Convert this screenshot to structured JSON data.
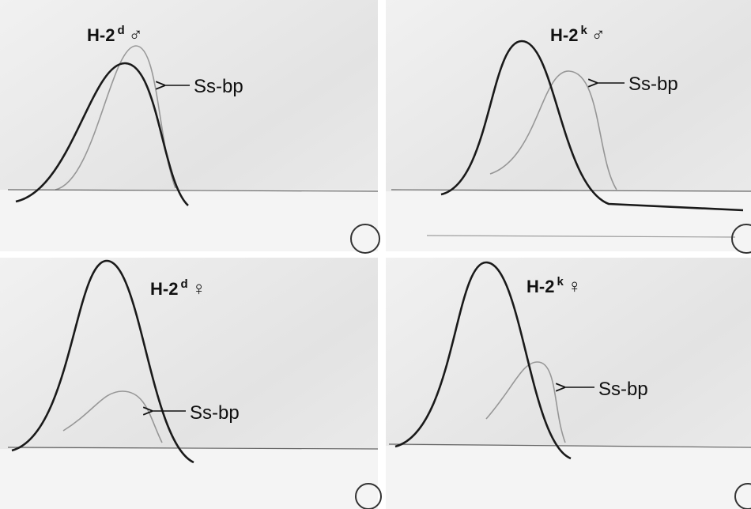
{
  "panels": [
    {
      "haplotype": "H-2",
      "superscript": "d",
      "sex": "♂",
      "annotation": "Ss-bp"
    },
    {
      "haplotype": "H-2",
      "superscript": "k",
      "sex": "♂",
      "annotation": "Ss-bp"
    },
    {
      "haplotype": "H-2",
      "superscript": "d",
      "sex": "♀",
      "annotation": "Ss-bp"
    },
    {
      "haplotype": "H-2",
      "superscript": "k",
      "sex": "♀",
      "annotation": "Ss-bp"
    }
  ]
}
